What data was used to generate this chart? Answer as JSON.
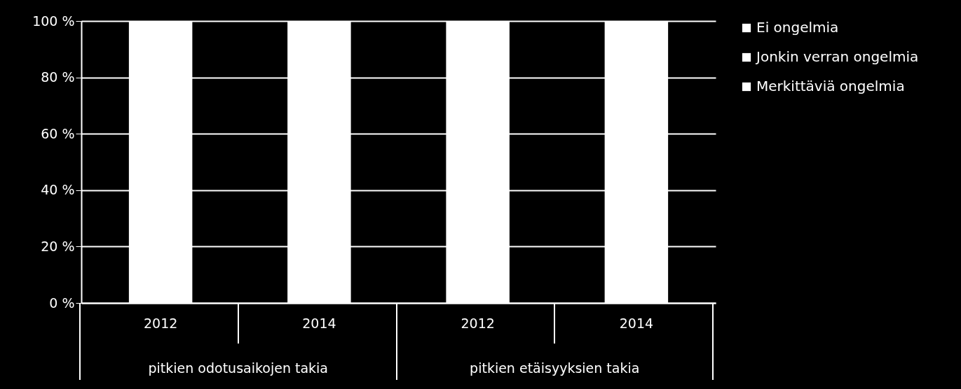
{
  "chart_data": {
    "type": "bar",
    "stacked": true,
    "categories": [
      "2012",
      "2014",
      "2012",
      "2014"
    ],
    "series": [
      {
        "name": "Merkittäviä ongelmia",
        "color": "#ffffff",
        "values": [
          null,
          null,
          null,
          null
        ]
      },
      {
        "name": "Jonkin verran ongelmia",
        "color": "#ffffff",
        "values": [
          null,
          null,
          null,
          null
        ]
      },
      {
        "name": "Ei ongelmia",
        "color": "#ffffff",
        "values": [
          100,
          100,
          100,
          100
        ]
      }
    ],
    "ylim": [
      0,
      100
    ],
    "yticks": [
      {
        "value": 0,
        "label": "0 %"
      },
      {
        "value": 20,
        "label": "20 %"
      },
      {
        "value": 40,
        "label": "40 %"
      },
      {
        "value": 60,
        "label": "60 %"
      },
      {
        "value": 80,
        "label": "80 %"
      },
      {
        "value": 100,
        "label": "100 %"
      }
    ],
    "grid": "y",
    "legend": "right",
    "annotations": [
      "pitkien odotusaikojen takia",
      "pitkien etäisyyksien takia"
    ]
  }
}
